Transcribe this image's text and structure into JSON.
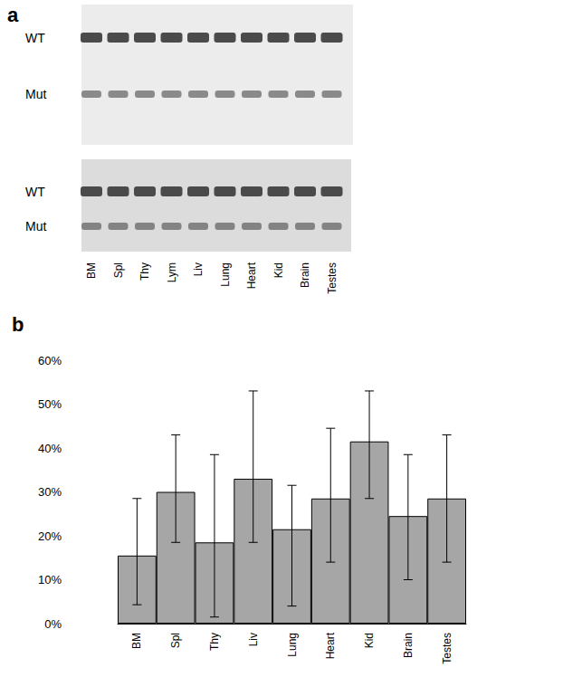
{
  "gel": {
    "panel_label": "a",
    "row_labels": [
      "WT",
      "Mut",
      "WT",
      "Mut"
    ],
    "lanes": [
      "BM",
      "Spl",
      "Thy",
      "Lym",
      "Liv",
      "Lung",
      "Heart",
      "Kid",
      "Brain",
      "Testes"
    ]
  },
  "chart_data": {
    "type": "bar",
    "title": "b",
    "categories": [
      "BM",
      "Spl",
      "Thy",
      "Liv",
      "Lung",
      "Heart",
      "Kid",
      "Brain",
      "Testes"
    ],
    "values": [
      15.5,
      30,
      18.5,
      33,
      21.5,
      28.5,
      41.5,
      24.5,
      28.5
    ],
    "error_lower": [
      4.3,
      18.5,
      1.5,
      18.5,
      4,
      14,
      28.5,
      10,
      14
    ],
    "error_upper": [
      28.5,
      43,
      38.5,
      53,
      31.5,
      44.5,
      53,
      38.5,
      43
    ],
    "color": "#a6a6a6",
    "ylim": [
      0,
      60
    ],
    "yticks": [
      {
        "value": 0,
        "label": "0%"
      },
      {
        "value": 10,
        "label": "10%"
      },
      {
        "value": 20,
        "label": "20%"
      },
      {
        "value": 30,
        "label": "30%"
      },
      {
        "value": 40,
        "label": "40%"
      },
      {
        "value": 50,
        "label": "50%"
      },
      {
        "value": 60,
        "label": "60%"
      }
    ],
    "grid": false
  }
}
